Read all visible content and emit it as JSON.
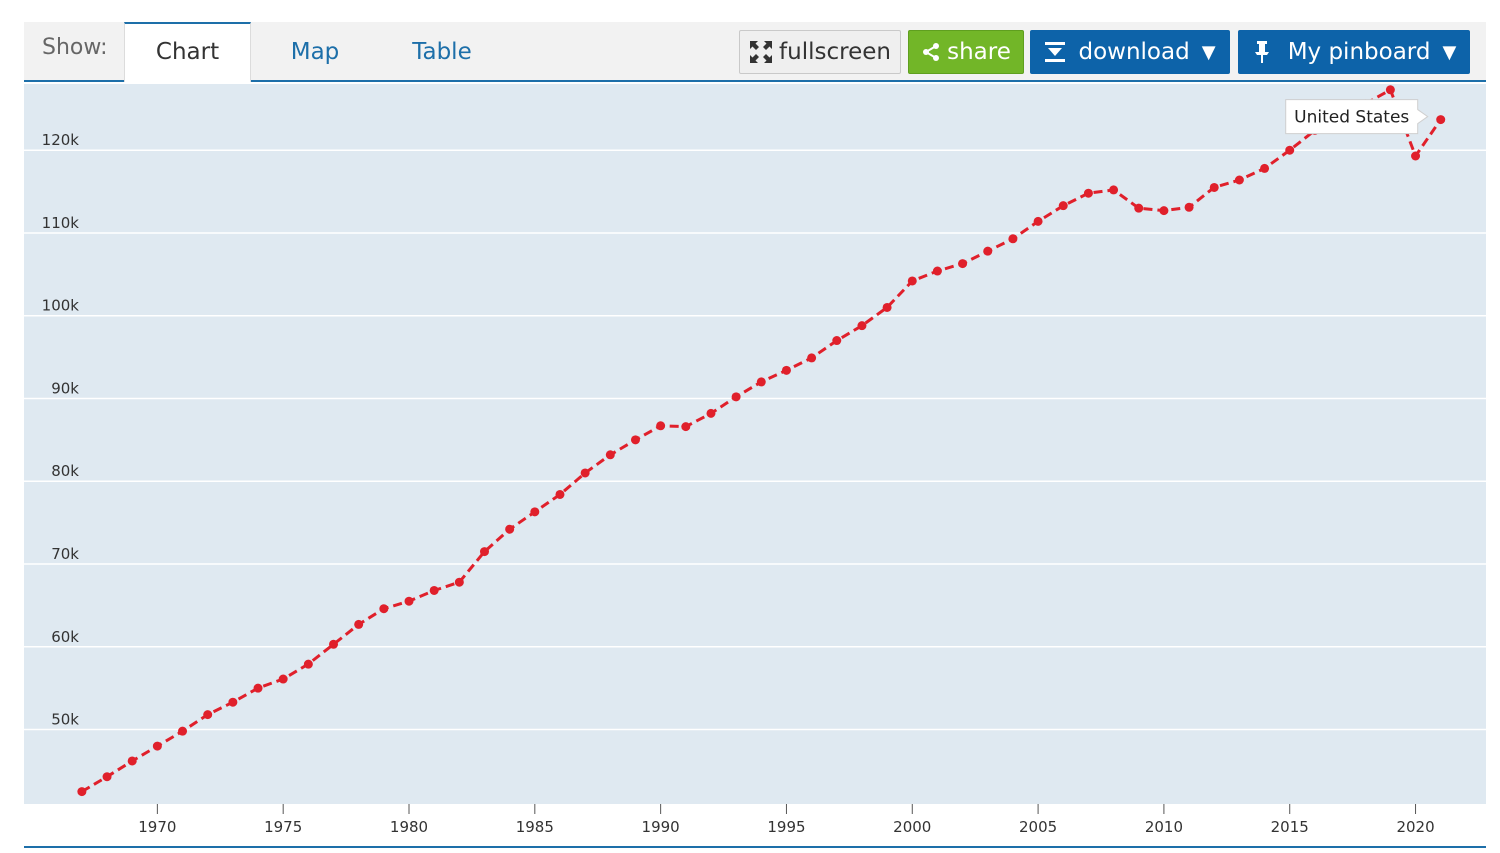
{
  "toolbar": {
    "show_label": "Show:",
    "tabs": [
      {
        "label": "Chart",
        "active": true
      },
      {
        "label": "Map",
        "active": false
      },
      {
        "label": "Table",
        "active": false
      }
    ],
    "fullscreen_label": "fullscreen",
    "share_label": "share",
    "download_label": "download",
    "pinboard_label": "My pinboard",
    "caret": "▼",
    "colors": {
      "share": "#72b628",
      "primary": "#0d63a9",
      "accent_line": "#1d6fa9"
    },
    "icons": {
      "fullscreen": "fullscreen-icon",
      "share": "share-icon",
      "download": "download-icon",
      "pinboard": "pin-icon"
    }
  },
  "tooltip": {
    "label": "United States"
  },
  "chart_data": {
    "type": "line",
    "title": "",
    "xlabel": "",
    "ylabel": "",
    "xlim": [
      1964.7,
      2022.8
    ],
    "ylim": [
      41,
      128
    ],
    "x_ticks": [
      1970,
      1975,
      1980,
      1985,
      1990,
      1995,
      2000,
      2005,
      2010,
      2015,
      2020
    ],
    "x_tick_labels": [
      "1970",
      "1975",
      "1980",
      "1985",
      "1990",
      "1995",
      "2000",
      "2005",
      "2010",
      "2015",
      "2020"
    ],
    "y_ticks": [
      50,
      60,
      70,
      80,
      90,
      100,
      110,
      120
    ],
    "y_tick_labels": [
      "50k",
      "60k",
      "70k",
      "80k",
      "90k",
      "100k",
      "110k",
      "120k"
    ],
    "grid": true,
    "background": "#dfe9f1",
    "series": [
      {
        "name": "United States",
        "color": "#e0202b",
        "line_style": "dashed",
        "x": [
          1967,
          1968,
          1969,
          1970,
          1971,
          1972,
          1973,
          1974,
          1975,
          1976,
          1977,
          1978,
          1979,
          1980,
          1981,
          1982,
          1983,
          1984,
          1985,
          1986,
          1987,
          1988,
          1989,
          1990,
          1991,
          1992,
          1993,
          1994,
          1995,
          1996,
          1997,
          1998,
          1999,
          2000,
          2001,
          2002,
          2003,
          2004,
          2005,
          2006,
          2007,
          2008,
          2009,
          2010,
          2011,
          2012,
          2013,
          2014,
          2015,
          2016,
          2017,
          2018,
          2019,
          2020,
          2021
        ],
        "y": [
          42.5,
          44.3,
          46.2,
          48.0,
          49.8,
          51.8,
          53.3,
          55.0,
          56.1,
          57.9,
          60.3,
          62.7,
          64.6,
          65.5,
          66.8,
          67.8,
          71.5,
          74.2,
          76.3,
          78.4,
          81.0,
          83.2,
          85.0,
          86.7,
          86.6,
          88.2,
          90.2,
          92.0,
          93.4,
          94.9,
          97.0,
          98.8,
          101.0,
          104.2,
          105.4,
          106.3,
          107.8,
          109.3,
          111.4,
          113.3,
          114.8,
          115.2,
          113.0,
          112.7,
          113.1,
          115.5,
          116.4,
          117.8,
          120.0,
          122.4,
          124.2,
          125.6,
          127.3,
          119.3,
          123.7
        ]
      }
    ]
  }
}
